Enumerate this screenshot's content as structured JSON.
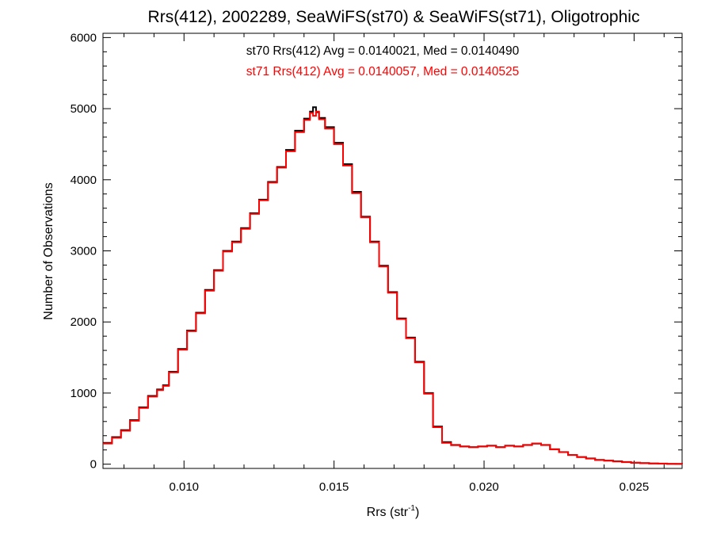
{
  "chart_data": {
    "type": "line",
    "step": true,
    "title": "Rrs(412), 2002289, SeaWiFS(st70) & SeaWiFS(st71), Oligotrophic",
    "xlabel_main": "Rrs (str",
    "xlabel_sup": "-1",
    "xlabel_end": ")",
    "ylabel": "Number of Observations",
    "xlim": [
      0.0073,
      0.0266
    ],
    "ylim": [
      -60,
      6060
    ],
    "xticks": [
      0.01,
      0.015,
      0.02,
      0.025
    ],
    "xtick_labels": [
      "0.010",
      "0.015",
      "0.020",
      "0.025"
    ],
    "yticks": [
      0,
      1000,
      2000,
      3000,
      4000,
      5000,
      6000
    ],
    "ytick_labels": [
      "0",
      "1000",
      "2000",
      "3000",
      "4000",
      "5000",
      "6000"
    ],
    "annotations": [
      {
        "text": "st70 Rrs(412) Avg = 0.0140021, Med = 0.0140490",
        "color": "#000000"
      },
      {
        "text": "st71 Rrs(412) Avg = 0.0140057, Med = 0.0140525",
        "color": "#ff0000"
      }
    ],
    "series": [
      {
        "name": "st70",
        "color": "#000000",
        "x": [
          0.0073,
          0.0076,
          0.0079,
          0.0082,
          0.0085,
          0.0088,
          0.0091,
          0.0093,
          0.0095,
          0.0098,
          0.0101,
          0.0104,
          0.0107,
          0.011,
          0.0113,
          0.0116,
          0.0119,
          0.0122,
          0.0125,
          0.0128,
          0.0131,
          0.0134,
          0.0137,
          0.014,
          0.0142,
          0.0143,
          0.0144,
          0.0145,
          0.0147,
          0.015,
          0.0153,
          0.0156,
          0.0159,
          0.0162,
          0.0165,
          0.0168,
          0.0171,
          0.0174,
          0.0177,
          0.018,
          0.0183,
          0.0186,
          0.0189,
          0.0192,
          0.0195,
          0.0198,
          0.0201,
          0.0204,
          0.0207,
          0.021,
          0.0213,
          0.0216,
          0.0219,
          0.0222,
          0.0225,
          0.0228,
          0.0231,
          0.0234,
          0.0237,
          0.024,
          0.0243,
          0.0246,
          0.0249,
          0.0252,
          0.0255,
          0.0258,
          0.0261,
          0.0264,
          0.0266
        ],
        "y": [
          300,
          380,
          480,
          620,
          800,
          960,
          1050,
          1110,
          1300,
          1620,
          1880,
          2130,
          2450,
          2730,
          3000,
          3130,
          3320,
          3530,
          3720,
          3970,
          4180,
          4420,
          4690,
          4860,
          4960,
          5020,
          4950,
          4870,
          4740,
          4520,
          4220,
          3830,
          3480,
          3130,
          2790,
          2420,
          2050,
          1780,
          1440,
          1000,
          530,
          310,
          270,
          250,
          240,
          250,
          260,
          240,
          260,
          250,
          270,
          290,
          270,
          210,
          170,
          130,
          100,
          80,
          60,
          50,
          40,
          30,
          20,
          15,
          10,
          8,
          5,
          3,
          2
        ]
      },
      {
        "name": "st71",
        "color": "#ff0000",
        "x": [
          0.0073,
          0.0076,
          0.0079,
          0.0082,
          0.0085,
          0.0088,
          0.0091,
          0.0093,
          0.0095,
          0.0098,
          0.0101,
          0.0104,
          0.0107,
          0.011,
          0.0113,
          0.0116,
          0.0119,
          0.0122,
          0.0125,
          0.0128,
          0.0131,
          0.0134,
          0.0137,
          0.014,
          0.0142,
          0.0143,
          0.0144,
          0.0145,
          0.0147,
          0.015,
          0.0153,
          0.0156,
          0.0159,
          0.0162,
          0.0165,
          0.0168,
          0.0171,
          0.0174,
          0.0177,
          0.018,
          0.0183,
          0.0186,
          0.0189,
          0.0192,
          0.0195,
          0.0198,
          0.0201,
          0.0204,
          0.0207,
          0.021,
          0.0213,
          0.0216,
          0.0219,
          0.0222,
          0.0225,
          0.0228,
          0.0231,
          0.0234,
          0.0237,
          0.024,
          0.0243,
          0.0246,
          0.0249,
          0.0252,
          0.0255,
          0.0258,
          0.0261,
          0.0264,
          0.0266
        ],
        "y": [
          290,
          370,
          470,
          610,
          790,
          950,
          1040,
          1100,
          1290,
          1610,
          1870,
          2120,
          2440,
          2720,
          2990,
          3120,
          3310,
          3520,
          3710,
          3960,
          4170,
          4400,
          4670,
          4840,
          4940,
          4900,
          4960,
          4850,
          4720,
          4500,
          4200,
          3810,
          3470,
          3120,
          2780,
          2410,
          2040,
          1770,
          1430,
          990,
          520,
          300,
          265,
          248,
          238,
          248,
          258,
          238,
          258,
          248,
          268,
          288,
          268,
          208,
          168,
          128,
          98,
          78,
          58,
          48,
          38,
          28,
          18,
          14,
          9,
          7,
          4,
          2,
          1
        ]
      }
    ]
  }
}
